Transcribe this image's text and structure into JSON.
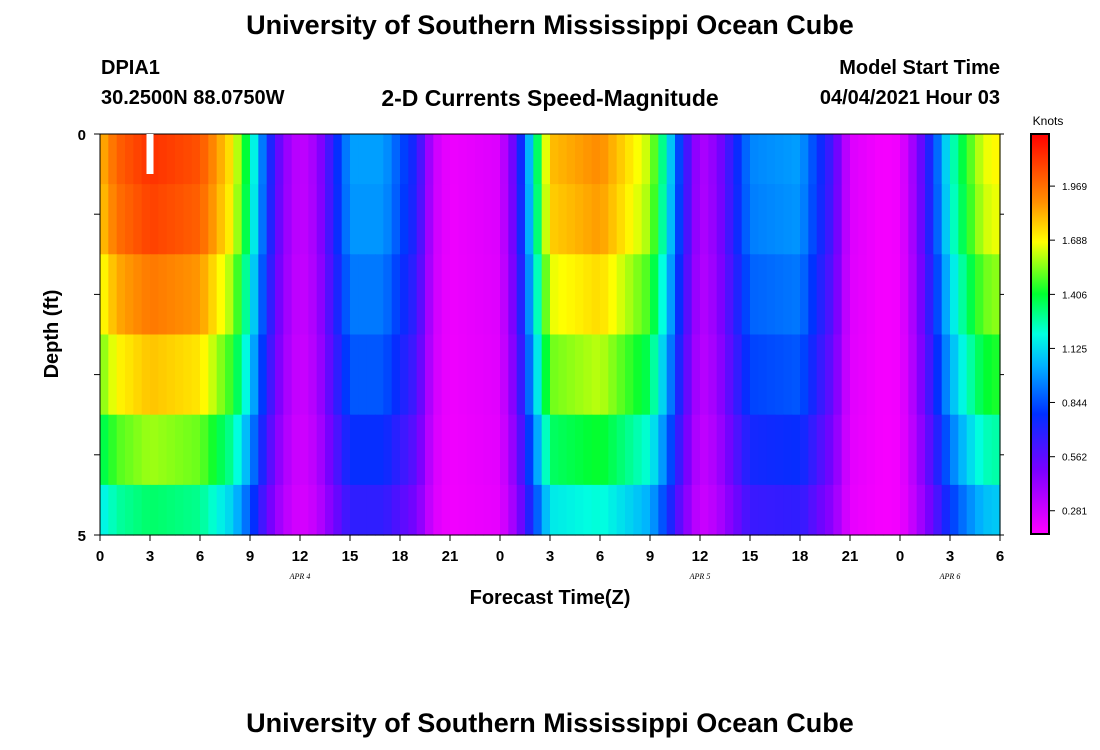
{
  "header": {
    "title": "University of Southern Mississippi Ocean Cube",
    "station": "DPIA1",
    "location": "30.2500N  88.0750W",
    "subtitle": "2-D Currents Speed-Magnitude",
    "model_start_label": "Model Start Time",
    "model_start_value": "04/04/2021 Hour 03"
  },
  "footer": {
    "title": "University of Southern Mississippi Ocean Cube"
  },
  "chart_data": {
    "type": "heatmap",
    "xlabel": "Forecast Time(Z)",
    "ylabel": "Depth (ft)",
    "x_tick_labels": [
      "0",
      "3",
      "6",
      "9",
      "12",
      "15",
      "18",
      "21",
      "0",
      "3",
      "6",
      "9",
      "12",
      "15",
      "18",
      "21",
      "0",
      "3",
      "6"
    ],
    "date_labels": [
      {
        "label": "APR 4",
        "hour": 12
      },
      {
        "label": "APR 5",
        "hour": 36
      },
      {
        "label": "APR 6",
        "hour": 51
      }
    ],
    "y_tick_labels": [
      "0",
      "5"
    ],
    "xlim_hours": [
      0,
      54
    ],
    "ylim_ft": [
      0,
      5
    ],
    "colorbar": {
      "unit": "Knots",
      "tick_labels": [
        "0.281",
        "0.562",
        "0.844",
        "1.125",
        "1.406",
        "1.688",
        "1.969"
      ],
      "range": [
        0.16,
        2.24
      ]
    },
    "current_time_marker_hour": 3,
    "depth_layers_ft": [
      0.25,
      1.0,
      2.0,
      3.0,
      4.0,
      4.75
    ],
    "depth_factors": [
      1.0,
      0.98,
      0.91,
      0.83,
      0.72,
      0.6
    ],
    "surface_speed_keyframes": {
      "hours": [
        0,
        1,
        3,
        6,
        8,
        9,
        10,
        11,
        12,
        13,
        15,
        17,
        19,
        20,
        21,
        24,
        25,
        26,
        27,
        30,
        33,
        34,
        35,
        36,
        37,
        39,
        42,
        44,
        45,
        47,
        48,
        49,
        50,
        51,
        52,
        53,
        54
      ],
      "knots": [
        1.8,
        2.0,
        2.12,
        2.04,
        1.7,
        1.3,
        0.8,
        0.45,
        0.3,
        0.4,
        1.0,
        1.0,
        0.7,
        0.3,
        0.2,
        0.25,
        0.6,
        1.2,
        1.8,
        1.9,
        1.6,
        1.2,
        0.7,
        0.35,
        0.45,
        0.95,
        1.0,
        0.6,
        0.25,
        0.18,
        0.2,
        0.45,
        0.8,
        1.2,
        1.45,
        1.65,
        1.7
      ]
    }
  }
}
